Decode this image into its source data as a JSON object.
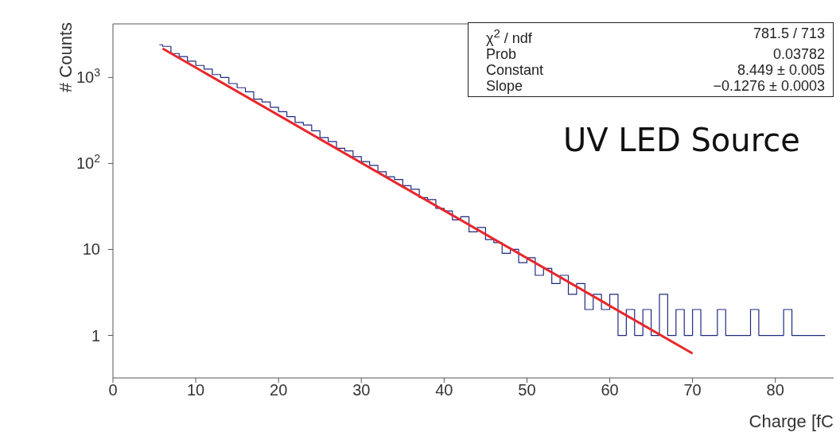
{
  "chart_data": {
    "type": "step",
    "xlabel": "Charge [fC",
    "ylabel": "# Counts",
    "log": "y",
    "xlim": [
      0,
      88
    ],
    "xticks": [
      0,
      10,
      20,
      30,
      40,
      50,
      60,
      70,
      80
    ],
    "ylim": [
      0.32,
      4200
    ],
    "yticks": [
      {
        "value": 1,
        "label": "1"
      },
      {
        "value": 10,
        "label": "10"
      },
      {
        "value": 100,
        "label": "10$^{2}$"
      },
      {
        "value": 1000,
        "label": "10$^{3}$"
      }
    ],
    "series": [
      {
        "color": "#1f2a80",
        "x": [
          5.6,
          6,
          7,
          8,
          9,
          10,
          11,
          12,
          13,
          14,
          15,
          16,
          17,
          18,
          19,
          20,
          21,
          22,
          23,
          24,
          25,
          26,
          27,
          28,
          29,
          30,
          31,
          32,
          33,
          34,
          35,
          36,
          37,
          38,
          39,
          40,
          41,
          42,
          43,
          44,
          45,
          46,
          47,
          48,
          49,
          50,
          51,
          52,
          53,
          54,
          55,
          56,
          57,
          58,
          59,
          60,
          61,
          62,
          63,
          64,
          65,
          66,
          67,
          68,
          69,
          70,
          71,
          72,
          73,
          74,
          75,
          76,
          77,
          78,
          79,
          80,
          81,
          82,
          83,
          84,
          85,
          86
        ],
        "values": [
          2400,
          2300,
          1900,
          1750,
          1550,
          1380,
          1250,
          1080,
          1000,
          850,
          760,
          680,
          560,
          520,
          450,
          400,
          350,
          300,
          280,
          240,
          200,
          180,
          150,
          140,
          120,
          105,
          95,
          80,
          70,
          65,
          55,
          50,
          40,
          38,
          30,
          28,
          22,
          24,
          16,
          18,
          13,
          12,
          9,
          10,
          7,
          8,
          5,
          6,
          4,
          5,
          3,
          4,
          2,
          3,
          2,
          3,
          1,
          2,
          1,
          2,
          1,
          3,
          1,
          2,
          1,
          2,
          1,
          1,
          2,
          1,
          1,
          1,
          2,
          1,
          1,
          1,
          2,
          1,
          1,
          1,
          1,
          1
        ]
      },
      {
        "type": "line",
        "color": "#e8262a",
        "x": [
          6,
          70
        ],
        "values": [
          2171,
          0.617
        ]
      }
    ],
    "annotations": [
      "χ$^{2}$ / ndf",
      "781.5 / 713",
      "Prob",
      "0.03782",
      "Constant",
      "8.449 ± 0.005",
      "Slope",
      "−0.1276 ± 0.0003",
      "UV LED Source"
    ]
  }
}
